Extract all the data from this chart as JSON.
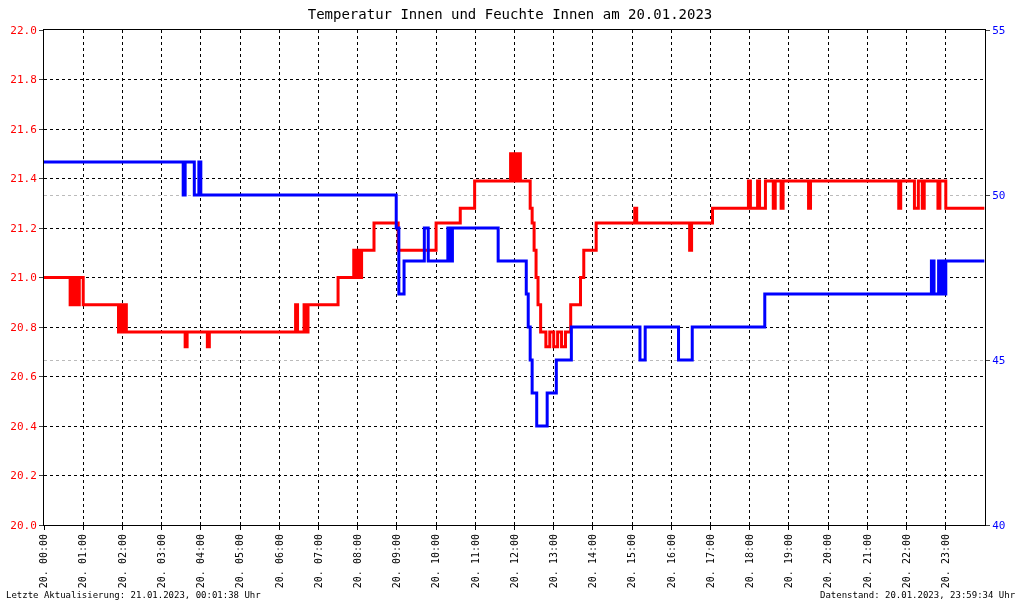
{
  "chart_data": {
    "type": "step",
    "title": "Temperatur Innen und Feuchte Innen am 20.01.2023",
    "xlim": [
      "2023-01-20T00:00",
      "2023-01-21T00:00"
    ],
    "xticks": [
      {
        "value": "2023-01-20T00:00",
        "label": "20. 00:00"
      },
      {
        "value": "2023-01-20T01:00",
        "label": "20. 01:00"
      },
      {
        "value": "2023-01-20T02:00",
        "label": "20. 02:00"
      },
      {
        "value": "2023-01-20T03:00",
        "label": "20. 03:00"
      },
      {
        "value": "2023-01-20T04:00",
        "label": "20. 04:00"
      },
      {
        "value": "2023-01-20T05:00",
        "label": "20. 05:00"
      },
      {
        "value": "2023-01-20T06:00",
        "label": "20. 06:00"
      },
      {
        "value": "2023-01-20T07:00",
        "label": "20. 07:00"
      },
      {
        "value": "2023-01-20T08:00",
        "label": "20. 08:00"
      },
      {
        "value": "2023-01-20T09:00",
        "label": "20. 09:00"
      },
      {
        "value": "2023-01-20T10:00",
        "label": "20. 10:00"
      },
      {
        "value": "2023-01-20T11:00",
        "label": "20. 11:00"
      },
      {
        "value": "2023-01-20T12:00",
        "label": "20. 12:00"
      },
      {
        "value": "2023-01-20T13:00",
        "label": "20. 13:00"
      },
      {
        "value": "2023-01-20T14:00",
        "label": "20. 14:00"
      },
      {
        "value": "2023-01-20T15:00",
        "label": "20. 15:00"
      },
      {
        "value": "2023-01-20T16:00",
        "label": "20. 16:00"
      },
      {
        "value": "2023-01-20T17:00",
        "label": "20. 17:00"
      },
      {
        "value": "2023-01-20T18:00",
        "label": "20. 18:00"
      },
      {
        "value": "2023-01-20T19:00",
        "label": "20. 19:00"
      },
      {
        "value": "2023-01-20T20:00",
        "label": "20. 20:00"
      },
      {
        "value": "2023-01-20T21:00",
        "label": "20. 21:00"
      },
      {
        "value": "2023-01-20T22:00",
        "label": "20. 22:00"
      },
      {
        "value": "2023-01-20T23:00",
        "label": "20. 23:00"
      }
    ],
    "ylim": [
      20.0,
      22.0
    ],
    "yticks": [
      {
        "value": 20.0,
        "label": "20.0"
      },
      {
        "value": 20.2,
        "label": "20.2"
      },
      {
        "value": 20.4,
        "label": "20.4"
      },
      {
        "value": 20.6,
        "label": "20.6"
      },
      {
        "value": 20.8,
        "label": "20.8"
      },
      {
        "value": 21.0,
        "label": "21.0"
      },
      {
        "value": 21.2,
        "label": "21.2"
      },
      {
        "value": 21.4,
        "label": "21.4"
      },
      {
        "value": 21.6,
        "label": "21.6"
      },
      {
        "value": 21.8,
        "label": "21.8"
      },
      {
        "value": 22.0,
        "label": "22.0"
      }
    ],
    "y2lim": [
      40,
      55
    ],
    "y2ticks": [
      40,
      45,
      50,
      55
    ],
    "grid": true,
    "marker": "none",
    "line_style": "solid",
    "series": [
      {
        "color": "#ff0000",
        "x": [
          "2023-01-20T00:00",
          "2023-01-20T00:40",
          "2023-01-20T00:42",
          "2023-01-20T00:45",
          "2023-01-20T00:48",
          "2023-01-20T00:51",
          "2023-01-20T00:54",
          "2023-01-20T01:00",
          "2023-01-20T01:54",
          "2023-01-20T01:57",
          "2023-01-20T02:00",
          "2023-01-20T02:03",
          "2023-01-20T02:06",
          "2023-01-20T03:36",
          "2023-01-20T03:39",
          "2023-01-20T04:10",
          "2023-01-20T04:13",
          "2023-01-20T06:25",
          "2023-01-20T06:28",
          "2023-01-20T06:38",
          "2023-01-20T06:41",
          "2023-01-20T06:44",
          "2023-01-20T07:30",
          "2023-01-20T07:54",
          "2023-01-20T07:57",
          "2023-01-20T08:00",
          "2023-01-20T08:03",
          "2023-01-20T08:06",
          "2023-01-20T08:25",
          "2023-01-20T09:02",
          "2023-01-20T10:00",
          "2023-01-20T10:37",
          "2023-01-20T10:59",
          "2023-01-20T11:54",
          "2023-01-20T11:57",
          "2023-01-20T12:00",
          "2023-01-20T12:03",
          "2023-01-20T12:06",
          "2023-01-20T12:09",
          "2023-01-20T12:24",
          "2023-01-20T12:27",
          "2023-01-20T12:30",
          "2023-01-20T12:33",
          "2023-01-20T12:36",
          "2023-01-20T12:40",
          "2023-01-20T12:48",
          "2023-01-20T12:54",
          "2023-01-20T13:00",
          "2023-01-20T13:06",
          "2023-01-20T13:12",
          "2023-01-20T13:18",
          "2023-01-20T13:26",
          "2023-01-20T13:41",
          "2023-01-20T13:46",
          "2023-01-20T14:05",
          "2023-01-20T15:04",
          "2023-01-20T15:07",
          "2023-01-20T16:28",
          "2023-01-20T16:31",
          "2023-01-20T17:03",
          "2023-01-20T17:58",
          "2023-01-20T18:01",
          "2023-01-20T18:12",
          "2023-01-20T18:15",
          "2023-01-20T18:24",
          "2023-01-20T18:36",
          "2023-01-20T18:39",
          "2023-01-20T18:48",
          "2023-01-20T18:51",
          "2023-01-20T19:30",
          "2023-01-20T19:33",
          "2023-01-20T21:48",
          "2023-01-20T21:51",
          "2023-01-20T22:12",
          "2023-01-20T22:18",
          "2023-01-20T22:24",
          "2023-01-20T22:27",
          "2023-01-20T22:48",
          "2023-01-20T22:51",
          "2023-01-20T23:00",
          "2023-01-20T23:59"
        ],
        "values": [
          21.0,
          20.89,
          21.0,
          20.89,
          21.0,
          20.89,
          21.0,
          20.89,
          20.78,
          20.89,
          20.78,
          20.89,
          20.78,
          20.72,
          20.78,
          20.72,
          20.78,
          20.89,
          20.78,
          20.89,
          20.78,
          20.89,
          21.0,
          21.11,
          21.0,
          21.11,
          21.0,
          21.11,
          21.22,
          21.11,
          21.22,
          21.28,
          21.39,
          21.5,
          21.39,
          21.5,
          21.39,
          21.5,
          21.39,
          21.28,
          21.22,
          21.11,
          21.0,
          20.89,
          20.78,
          20.72,
          20.78,
          20.72,
          20.78,
          20.72,
          20.78,
          20.89,
          21.0,
          21.11,
          21.22,
          21.28,
          21.22,
          21.11,
          21.22,
          21.28,
          21.39,
          21.28,
          21.39,
          21.28,
          21.39,
          21.28,
          21.39,
          21.28,
          21.39,
          21.28,
          21.39,
          21.28,
          21.39,
          21.28,
          21.39,
          21.28,
          21.39,
          21.28,
          21.39,
          21.28,
          21.28
        ]
      },
      {
        "color": "#0000ff",
        "axis": "y2",
        "x": [
          "2023-01-20T00:00",
          "2023-01-20T03:33",
          "2023-01-20T03:36",
          "2023-01-20T03:50",
          "2023-01-20T03:57",
          "2023-01-20T04:00",
          "2023-01-20T08:59",
          "2023-01-20T09:03",
          "2023-01-20T09:11",
          "2023-01-20T09:42",
          "2023-01-20T09:48",
          "2023-01-20T10:18",
          "2023-01-20T10:21",
          "2023-01-20T10:25",
          "2023-01-20T11:35",
          "2023-01-20T12:18",
          "2023-01-20T12:21",
          "2023-01-20T12:24",
          "2023-01-20T12:27",
          "2023-01-20T12:34",
          "2023-01-20T12:50",
          "2023-01-20T13:04",
          "2023-01-20T13:27",
          "2023-01-20T15:12",
          "2023-01-20T15:20",
          "2023-01-20T16:11",
          "2023-01-20T16:32",
          "2023-01-20T18:23",
          "2023-01-20T22:38",
          "2023-01-20T22:42",
          "2023-01-20T22:49",
          "2023-01-20T22:52",
          "2023-01-20T22:54",
          "2023-01-20T22:57",
          "2023-01-20T23:00",
          "2023-01-20T23:59"
        ],
        "values": [
          51,
          50,
          51,
          50,
          51,
          50,
          49,
          47,
          48,
          49,
          48,
          49,
          48,
          49,
          48,
          47,
          46,
          45,
          44,
          43,
          44,
          45,
          46,
          45,
          46,
          45,
          46,
          47,
          48,
          47,
          48,
          47,
          48,
          47,
          48,
          48
        ]
      }
    ],
    "annotations": [
      "Letzte Aktualisierung: 21.01.2023, 00:01:38 Uhr",
      "Datenstand: 20.01.2023, 23:59:34 Uhr"
    ]
  }
}
